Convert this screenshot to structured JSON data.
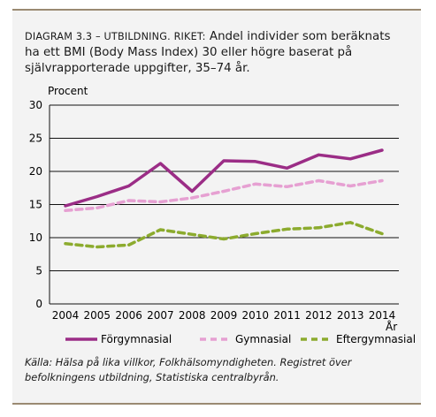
{
  "title_prefix": "DIAGRAM 3.3 – UTBILDNING. RIKET:",
  "title_text": "Andel individer som beräknats ha ett BMI (Body Mass Index) 30 eller högre baserat på självrapporterade uppgifter, 35–74 år.",
  "source": "Källa: Hälsa på lika villkor, Folkhälsomyndigheten. Registret över befolkningens utbildning, Statistiska centralbyrån.",
  "chart_data": {
    "type": "line",
    "x": [
      2004,
      2005,
      2006,
      2007,
      2008,
      2009,
      2010,
      2011,
      2012,
      2013,
      2014
    ],
    "series": [
      {
        "name": "Förgymnasial",
        "color": "#9b2d86",
        "dash": "solid",
        "values": [
          14.8,
          16.2,
          17.8,
          21.2,
          17.0,
          21.6,
          21.5,
          20.5,
          22.5,
          21.9,
          23.2
        ]
      },
      {
        "name": "Gymnasial",
        "color": "#e6a0d2",
        "dash": "dashed",
        "values": [
          14.1,
          14.5,
          15.6,
          15.4,
          16.0,
          17.0,
          18.1,
          17.7,
          18.6,
          17.8,
          18.6
        ]
      },
      {
        "name": "Eftergymnasial",
        "color": "#8cab2e",
        "dash": "dashed",
        "values": [
          9.1,
          8.6,
          8.9,
          11.2,
          10.5,
          9.8,
          10.6,
          11.3,
          11.5,
          12.3,
          10.6
        ]
      }
    ],
    "ylabel": "Procent",
    "xlabel": "År",
    "ylim": [
      0,
      30
    ],
    "yticks": [
      0,
      5,
      10,
      15,
      20,
      25,
      30
    ],
    "grid": true,
    "legend": "bottom"
  }
}
